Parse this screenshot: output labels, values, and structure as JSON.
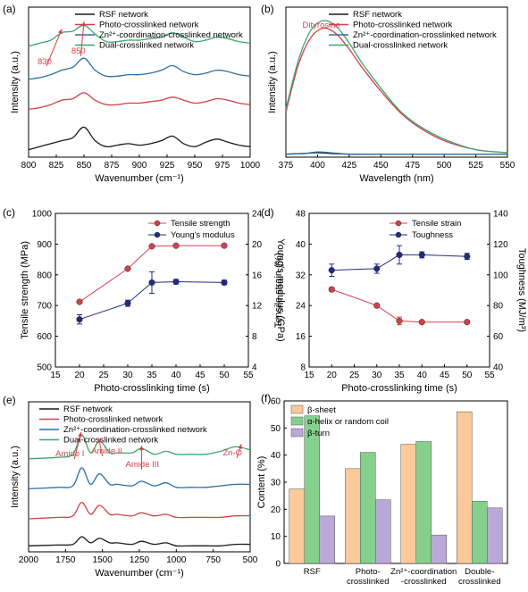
{
  "colors": {
    "black": "#1a1a1a",
    "red": "#d6404a",
    "blue": "#2b6fa8",
    "green": "#3aa86a",
    "navy": "#1f2c86",
    "orange": "#fbc99a",
    "lightgreen": "#86d08d",
    "lavender": "#bba8d8"
  },
  "chart_data": [
    {
      "id": "a",
      "panel_label": "(a)",
      "type": "line",
      "xlabel": "Wavenumber (cm⁻¹)",
      "ylabel": "Intensity (a.u.)",
      "xlim": [
        800,
        1000
      ],
      "x_ticks": [
        "800",
        "825",
        "850",
        "875",
        "900",
        "925",
        "950",
        "975",
        "1000"
      ],
      "legend": "top-right",
      "annotations": [
        "830",
        "850"
      ],
      "series": [
        {
          "name": "RSF network",
          "color": "black",
          "x": [
            800,
            810,
            820,
            830,
            840,
            850,
            860,
            870,
            880,
            890,
            900,
            910,
            920,
            930,
            940,
            950,
            960,
            970,
            980,
            990,
            1000
          ],
          "y": [
            0.05,
            0.07,
            0.09,
            0.11,
            0.13,
            0.2,
            0.11,
            0.07,
            0.08,
            0.09,
            0.08,
            0.09,
            0.11,
            0.14,
            0.09,
            0.07,
            0.1,
            0.12,
            0.1,
            0.08,
            0.07
          ]
        },
        {
          "name": "Photo-crosslinked network",
          "color": "red",
          "x": [
            800,
            810,
            820,
            830,
            840,
            850,
            860,
            870,
            880,
            890,
            900,
            910,
            920,
            930,
            940,
            950,
            960,
            970,
            980,
            990,
            1000
          ],
          "y": [
            0.32,
            0.33,
            0.35,
            0.38,
            0.39,
            0.43,
            0.38,
            0.35,
            0.35,
            0.36,
            0.36,
            0.37,
            0.38,
            0.4,
            0.38,
            0.36,
            0.37,
            0.39,
            0.38,
            0.36,
            0.35
          ]
        },
        {
          "name": "Zn²⁺-coordination-crosslinked network",
          "color": "blue",
          "x": [
            800,
            810,
            820,
            830,
            840,
            850,
            860,
            870,
            880,
            890,
            900,
            910,
            920,
            930,
            940,
            950,
            960,
            970,
            980,
            990,
            1000
          ],
          "y": [
            0.52,
            0.53,
            0.55,
            0.58,
            0.6,
            0.66,
            0.58,
            0.54,
            0.54,
            0.55,
            0.55,
            0.56,
            0.58,
            0.61,
            0.57,
            0.55,
            0.56,
            0.58,
            0.57,
            0.55,
            0.54
          ]
        },
        {
          "name": "Dual-crosslinked network",
          "color": "green",
          "x": [
            800,
            810,
            820,
            830,
            840,
            850,
            860,
            870,
            880,
            890,
            900,
            910,
            920,
            930,
            940,
            950,
            960,
            970,
            980,
            990,
            1000
          ],
          "y": [
            0.74,
            0.76,
            0.78,
            0.83,
            0.84,
            0.88,
            0.82,
            0.77,
            0.77,
            0.78,
            0.78,
            0.79,
            0.8,
            0.83,
            0.8,
            0.77,
            0.78,
            0.8,
            0.79,
            0.77,
            0.76
          ]
        }
      ]
    },
    {
      "id": "b",
      "panel_label": "(b)",
      "type": "line",
      "xlabel": "Wavelength (nm)",
      "ylabel": "Intensity (a.u.)",
      "xlim": [
        375,
        550
      ],
      "x_ticks": [
        "375",
        "400",
        "425",
        "450",
        "475",
        "500",
        "525",
        "550"
      ],
      "legend": "top-right",
      "annotations": [
        "Dityrosine"
      ],
      "series": [
        {
          "name": "RSF network",
          "color": "black",
          "x": [
            375,
            390,
            400,
            410,
            425,
            450,
            475,
            500,
            525,
            550
          ],
          "y": [
            0.02,
            0.025,
            0.03,
            0.025,
            0.02,
            0.02,
            0.02,
            0.02,
            0.02,
            0.02
          ]
        },
        {
          "name": "Photo-crosslinked network",
          "color": "red",
          "x": [
            375,
            385,
            395,
            405,
            415,
            425,
            435,
            450,
            465,
            480,
            500,
            525,
            550
          ],
          "y": [
            0.3,
            0.62,
            0.8,
            0.86,
            0.82,
            0.72,
            0.6,
            0.44,
            0.3,
            0.2,
            0.11,
            0.05,
            0.03
          ]
        },
        {
          "name": "Zn²⁺-coordination-crosslinked network",
          "color": "blue",
          "x": [
            375,
            390,
            400,
            410,
            425,
            450,
            475,
            500,
            525,
            550
          ],
          "y": [
            0.02,
            0.025,
            0.035,
            0.03,
            0.02,
            0.02,
            0.02,
            0.02,
            0.02,
            0.02
          ]
        },
        {
          "name": "Dual-crosslinked network",
          "color": "green",
          "x": [
            375,
            385,
            395,
            405,
            415,
            425,
            435,
            450,
            465,
            480,
            500,
            525,
            550
          ],
          "y": [
            0.32,
            0.65,
            0.85,
            0.91,
            0.87,
            0.76,
            0.63,
            0.46,
            0.31,
            0.21,
            0.12,
            0.05,
            0.03
          ]
        }
      ]
    },
    {
      "id": "c",
      "panel_label": "(c)",
      "type": "line",
      "xlabel": "Photo-crosslinking time (s)",
      "ylabel": "Tensile strength (MPa)",
      "ylabel_right": "Young's modulus (GPa)",
      "xlim": [
        15,
        55
      ],
      "ylim": [
        500,
        1000
      ],
      "ylim_right": [
        4,
        24
      ],
      "x_ticks": [
        "15",
        "20",
        "25",
        "30",
        "35",
        "40",
        "45",
        "50",
        "55"
      ],
      "y_ticks": [
        "500",
        "600",
        "700",
        "800",
        "900",
        "1000"
      ],
      "y_ticks_right": [
        "4",
        "8",
        "12",
        "16",
        "20",
        "24"
      ],
      "legend": "top-right",
      "series": [
        {
          "name": "Tensile strength",
          "color": "red",
          "axis": "left",
          "x": [
            20,
            30,
            35,
            40,
            50
          ],
          "y": [
            712,
            820,
            893,
            895,
            895
          ],
          "err": [
            0,
            0,
            0,
            0,
            0
          ]
        },
        {
          "name": "Young's modulus",
          "color": "navy",
          "axis": "right",
          "x": [
            20,
            30,
            35,
            40,
            50
          ],
          "y": [
            10.2,
            12.3,
            15.0,
            15.1,
            15.0
          ],
          "err": [
            0.6,
            0.4,
            1.4,
            0.3,
            0.3
          ]
        }
      ]
    },
    {
      "id": "d",
      "panel_label": "(d)",
      "type": "line",
      "xlabel": "Photo-crosslinking time (s)",
      "ylabel": "Tensile strain (%)",
      "ylabel_right": "Toughness (MJ/m³)",
      "xlim": [
        15,
        55
      ],
      "ylim": [
        8,
        48
      ],
      "ylim_right": [
        40,
        140
      ],
      "x_ticks": [
        "15",
        "20",
        "25",
        "30",
        "35",
        "40",
        "45",
        "50",
        "55"
      ],
      "y_ticks": [
        "8",
        "16",
        "24",
        "32",
        "40",
        "48"
      ],
      "y_ticks_right": [
        "40",
        "60",
        "80",
        "100",
        "120",
        "140"
      ],
      "legend": "top-right",
      "series": [
        {
          "name": "Tensile strain",
          "color": "red",
          "axis": "left",
          "x": [
            20,
            30,
            35,
            40,
            50
          ],
          "y": [
            28.2,
            24.0,
            20.0,
            19.7,
            19.7
          ],
          "err": [
            0.5,
            0.3,
            1.0,
            0.3,
            0.3
          ]
        },
        {
          "name": "Toughness",
          "color": "navy",
          "axis": "right",
          "x": [
            20,
            30,
            35,
            40,
            50
          ],
          "y": [
            103,
            104,
            113,
            113,
            112
          ],
          "err": [
            4,
            3,
            6,
            2,
            2
          ]
        }
      ]
    },
    {
      "id": "e",
      "panel_label": "(e)",
      "type": "line",
      "xlabel": "Wavenumber (cm⁻¹)",
      "ylabel": "Intensity (a.u.)",
      "xlim": [
        2000,
        500
      ],
      "x_ticks": [
        "2000",
        "1750",
        "1500",
        "1250",
        "1000",
        "750",
        "500"
      ],
      "legend": "top-left",
      "annotations": [
        "Amide I",
        "Amide II",
        "Amide III",
        "Zn-O"
      ],
      "series": [
        {
          "name": "RSF network",
          "color": "black",
          "x": [
            2000,
            1800,
            1700,
            1640,
            1580,
            1520,
            1450,
            1400,
            1300,
            1235,
            1150,
            1070,
            1000,
            900,
            800,
            700,
            600,
            500
          ],
          "y": [
            0.04,
            0.045,
            0.05,
            0.1,
            0.06,
            0.09,
            0.06,
            0.06,
            0.05,
            0.07,
            0.05,
            0.06,
            0.04,
            0.04,
            0.04,
            0.04,
            0.05,
            0.05
          ]
        },
        {
          "name": "Photo-crosslinked network",
          "color": "red",
          "x": [
            2000,
            1800,
            1700,
            1640,
            1580,
            1520,
            1450,
            1400,
            1300,
            1235,
            1150,
            1070,
            1000,
            900,
            800,
            700,
            600,
            500
          ],
          "y": [
            0.22,
            0.23,
            0.24,
            0.33,
            0.25,
            0.31,
            0.25,
            0.25,
            0.24,
            0.26,
            0.24,
            0.25,
            0.23,
            0.23,
            0.23,
            0.23,
            0.24,
            0.24
          ]
        },
        {
          "name": "Zn²⁺-coordination-crosslinked network",
          "color": "blue",
          "x": [
            2000,
            1800,
            1700,
            1640,
            1580,
            1520,
            1450,
            1400,
            1300,
            1235,
            1150,
            1070,
            1000,
            900,
            800,
            700,
            600,
            500
          ],
          "y": [
            0.42,
            0.43,
            0.44,
            0.56,
            0.45,
            0.52,
            0.45,
            0.45,
            0.44,
            0.47,
            0.44,
            0.46,
            0.43,
            0.43,
            0.43,
            0.44,
            0.45,
            0.45
          ]
        },
        {
          "name": "Dual-crosslinked network",
          "color": "green",
          "x": [
            2000,
            1800,
            1700,
            1640,
            1580,
            1520,
            1450,
            1400,
            1300,
            1235,
            1150,
            1070,
            1000,
            900,
            800,
            700,
            600,
            500
          ],
          "y": [
            0.62,
            0.63,
            0.65,
            0.78,
            0.66,
            0.74,
            0.66,
            0.66,
            0.66,
            0.69,
            0.65,
            0.67,
            0.65,
            0.65,
            0.65,
            0.67,
            0.7,
            0.68
          ]
        }
      ]
    },
    {
      "id": "f",
      "panel_label": "(f)",
      "type": "bar",
      "ylabel": "Content (%)",
      "ylim": [
        0,
        60
      ],
      "y_ticks": [
        "0",
        "10",
        "20",
        "30",
        "40",
        "50",
        "60"
      ],
      "legend": "top-left",
      "categories": [
        [
          "RSF"
        ],
        [
          "Photo-",
          "crosslinked"
        ],
        [
          "Zn²⁺-coordination",
          "-crosslinked"
        ],
        [
          "Double-",
          "crosslinked"
        ]
      ],
      "series": [
        {
          "name": "β-sheet",
          "color": "orange",
          "values": [
            27.5,
            35.0,
            44.0,
            56.0
          ]
        },
        {
          "name": "α-helix or random coil",
          "color": "lightgreen",
          "values": [
            54.5,
            41.0,
            45.0,
            23.0
          ]
        },
        {
          "name": "β-turn",
          "color": "lavender",
          "values": [
            17.5,
            23.5,
            10.5,
            20.5
          ]
        }
      ]
    }
  ]
}
